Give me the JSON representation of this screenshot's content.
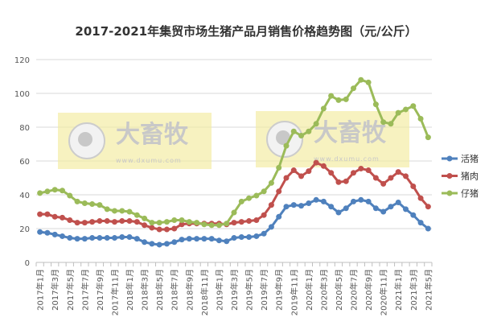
{
  "chart_data": {
    "type": "line",
    "title": "2017-2021年集贸市场生猪产品月销售价格趋势图（元/公斤）",
    "ylim": [
      0,
      120
    ],
    "yticks": [
      0,
      20,
      40,
      60,
      80,
      100,
      120
    ],
    "grid": true,
    "legend_position": "right",
    "x_label_every": 2,
    "x": [
      "2017年1月",
      "2017年2月",
      "2017年3月",
      "2017年4月",
      "2017年5月",
      "2017年6月",
      "2017年7月",
      "2017年8月",
      "2017年9月",
      "2017年10月",
      "2017年11月",
      "2017年12月",
      "2018年1月",
      "2018年2月",
      "2018年3月",
      "2018年4月",
      "2018年5月",
      "2018年6月",
      "2018年7月",
      "2018年8月",
      "2018年9月",
      "2018年10月",
      "2018年11月",
      "2018年12月",
      "2019年1月",
      "2019年2月",
      "2019年3月",
      "2019年4月",
      "2019年5月",
      "2019年6月",
      "2019年7月",
      "2019年8月",
      "2019年9月",
      "2019年10月",
      "2019年11月",
      "2019年12月",
      "2020年1月",
      "2020年2月",
      "2020年3月",
      "2020年4月",
      "2020年5月",
      "2020年6月",
      "2020年7月",
      "2020年8月",
      "2020年9月",
      "2020年10月",
      "2020年11月",
      "2020年12月",
      "2021年1月",
      "2021年2月",
      "2021年3月",
      "2021年4月",
      "2021年5月"
    ],
    "series": [
      {
        "name": "活猪",
        "color": "#4f81bd",
        "values": [
          18,
          17.5,
          16.5,
          15.5,
          14.5,
          14,
          14,
          14.5,
          14.5,
          14.5,
          14.5,
          15,
          15,
          14,
          12,
          11,
          10.5,
          11,
          12,
          13.5,
          14,
          14,
          14,
          14,
          13,
          12.5,
          14.5,
          15,
          15,
          15.5,
          17,
          21,
          27,
          33,
          34,
          33.5,
          35,
          37,
          36,
          33,
          29.5,
          32,
          36,
          37,
          36,
          32,
          30,
          33,
          35.5,
          31.5,
          28,
          23.5,
          20
        ]
      },
      {
        "name": "猪肉",
        "color": "#c0504d",
        "values": [
          28.5,
          28.5,
          27,
          26.5,
          25,
          23.5,
          23.5,
          24,
          24.5,
          24.5,
          24,
          24.5,
          24.5,
          24,
          22,
          20.5,
          19.5,
          19.5,
          20,
          22.5,
          23,
          23,
          23,
          23,
          23,
          22.5,
          23.5,
          24,
          24.5,
          25,
          28,
          34,
          42,
          50,
          54.5,
          51,
          54,
          59,
          57,
          53,
          47.5,
          48,
          53,
          55.5,
          54.5,
          50,
          46.5,
          50,
          53.5,
          51,
          45,
          38,
          33
        ]
      },
      {
        "name": "仔猪",
        "color": "#9bbb59",
        "values": [
          41,
          42,
          43,
          42.5,
          39.5,
          36,
          35,
          34.5,
          34,
          31.5,
          30.5,
          30.5,
          30,
          28,
          26,
          23.5,
          23.5,
          24,
          25,
          25,
          24,
          23.5,
          22.5,
          22,
          22,
          23,
          29.5,
          36,
          38,
          39.5,
          42,
          47,
          56,
          69,
          77.5,
          75,
          77.5,
          82,
          91,
          98.5,
          96,
          96.5,
          103,
          108,
          106.5,
          93.5,
          83,
          82,
          88.5,
          90.5,
          92.5,
          85,
          74
        ]
      }
    ]
  },
  "watermark": {
    "brand": "大畜牧",
    "url": "www.dxumu.com"
  }
}
